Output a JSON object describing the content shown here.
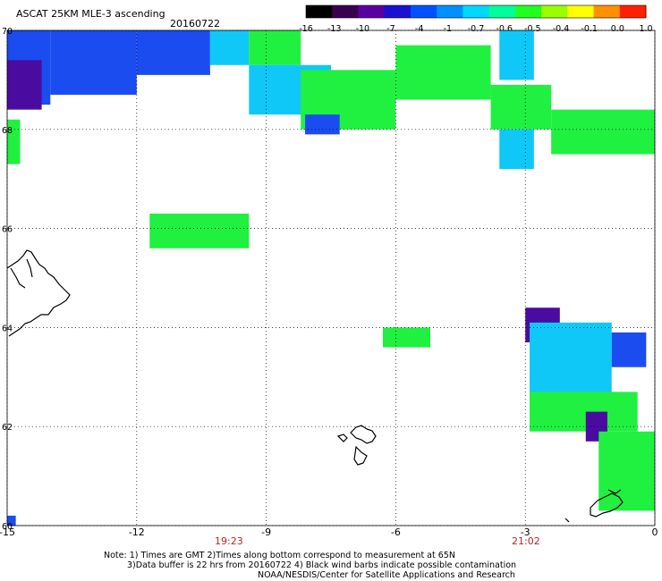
{
  "header": {
    "title": "ASCAT 25KM MLE-3 ascending",
    "date": "20160722"
  },
  "colorbar": {
    "labels": [
      "-16",
      "-13",
      "-10",
      "-7",
      "-4",
      "-1",
      "-0.7",
      "-0.6",
      "-0.5",
      "-0.4",
      "-0.1",
      "0.0",
      "1.0"
    ],
    "colors": [
      "#000000",
      "#3a0050",
      "#5a00a0",
      "#1a10d0",
      "#0050ff",
      "#0090ff",
      "#00d8ff",
      "#00ff9a",
      "#20ff20",
      "#9aff00",
      "#ffff00",
      "#ff9000",
      "#ff2000"
    ]
  },
  "axes": {
    "x_ticks": [
      "-15",
      "-12",
      "-9",
      "-6",
      "-3",
      "0"
    ],
    "y_ticks": [
      "70",
      "68",
      "66",
      "64",
      "62",
      "60"
    ],
    "time_labels": [
      "19:23",
      "21:02"
    ]
  },
  "notes": {
    "line1": "Note: 1) Times are GMT 2)Times along bottom correspond to measurement at 65N",
    "line2": "3)Data buffer is 22 hrs from 20160722 4) Black wind barbs indicate possible contamination",
    "line3": "NOAA/NESDIS/Center for Satellite Applications and Research"
  },
  "map_data": {
    "lon_range": [
      -15,
      0
    ],
    "lat_range": [
      60,
      70
    ],
    "cells": [
      {
        "lon0": -15,
        "lon1": -14,
        "lat0": 68.5,
        "lat1": 70,
        "class": "blue"
      },
      {
        "lon0": -14,
        "lon1": -12,
        "lat0": 68.7,
        "lat1": 70,
        "class": "blue"
      },
      {
        "lon0": -15,
        "lon1": -14.2,
        "lat0": 68.4,
        "lat1": 69.4,
        "class": "violet"
      },
      {
        "lon0": -12,
        "lon1": -10.3,
        "lat0": 69.1,
        "lat1": 70,
        "class": "blue"
      },
      {
        "lon0": -10.3,
        "lon1": -9.4,
        "lat0": 69.3,
        "lat1": 70,
        "class": "cyan"
      },
      {
        "lon0": -9.4,
        "lon1": -8.2,
        "lat0": 69.3,
        "lat1": 70,
        "class": "green"
      },
      {
        "lon0": -9.4,
        "lon1": -7.5,
        "lat0": 68.3,
        "lat1": 69.3,
        "class": "cyan"
      },
      {
        "lon0": -8.2,
        "lon1": -6,
        "lat0": 68.0,
        "lat1": 69.2,
        "class": "green"
      },
      {
        "lon0": -6,
        "lon1": -3.8,
        "lat0": 68.6,
        "lat1": 69.7,
        "class": "green"
      },
      {
        "lon0": -3.8,
        "lon1": -2.4,
        "lat0": 68.0,
        "lat1": 68.9,
        "class": "green"
      },
      {
        "lon0": -3.6,
        "lon1": -2.8,
        "lat0": 69.0,
        "lat1": 70,
        "class": "cyan"
      },
      {
        "lon0": -2.4,
        "lon1": 0,
        "lat0": 67.5,
        "lat1": 68.4,
        "class": "green"
      },
      {
        "lon0": -3.6,
        "lon1": -2.8,
        "lat0": 67.2,
        "lat1": 68.0,
        "class": "cyan"
      },
      {
        "lon0": -8.1,
        "lon1": -7.3,
        "lat0": 67.9,
        "lat1": 68.3,
        "class": "blue"
      },
      {
        "lon0": -15,
        "lon1": -14.7,
        "lat0": 67.3,
        "lat1": 68.2,
        "class": "green"
      },
      {
        "lon0": -11.7,
        "lon1": -9.4,
        "lat0": 65.6,
        "lat1": 66.3,
        "class": "green"
      },
      {
        "lon0": -6.3,
        "lon1": -5.2,
        "lat0": 63.6,
        "lat1": 64.0,
        "class": "green"
      },
      {
        "lon0": -3.0,
        "lon1": -2.2,
        "lat0": 63.7,
        "lat1": 64.4,
        "class": "violet"
      },
      {
        "lon0": -2.9,
        "lon1": -1.0,
        "lat0": 62.5,
        "lat1": 64.1,
        "class": "cyan"
      },
      {
        "lon0": -1.0,
        "lon1": -0.2,
        "lat0": 63.2,
        "lat1": 63.9,
        "class": "blue"
      },
      {
        "lon0": -2.9,
        "lon1": -0.4,
        "lat0": 61.9,
        "lat1": 62.7,
        "class": "green"
      },
      {
        "lon0": -1.6,
        "lon1": -1.1,
        "lat0": 61.7,
        "lat1": 62.3,
        "class": "violet"
      },
      {
        "lon0": -1.3,
        "lon1": 0,
        "lat0": 60.3,
        "lat1": 61.9,
        "class": "green"
      },
      {
        "lon0": -15,
        "lon1": -14.8,
        "lat0": 60,
        "lat1": 60.2,
        "class": "blue"
      }
    ]
  }
}
